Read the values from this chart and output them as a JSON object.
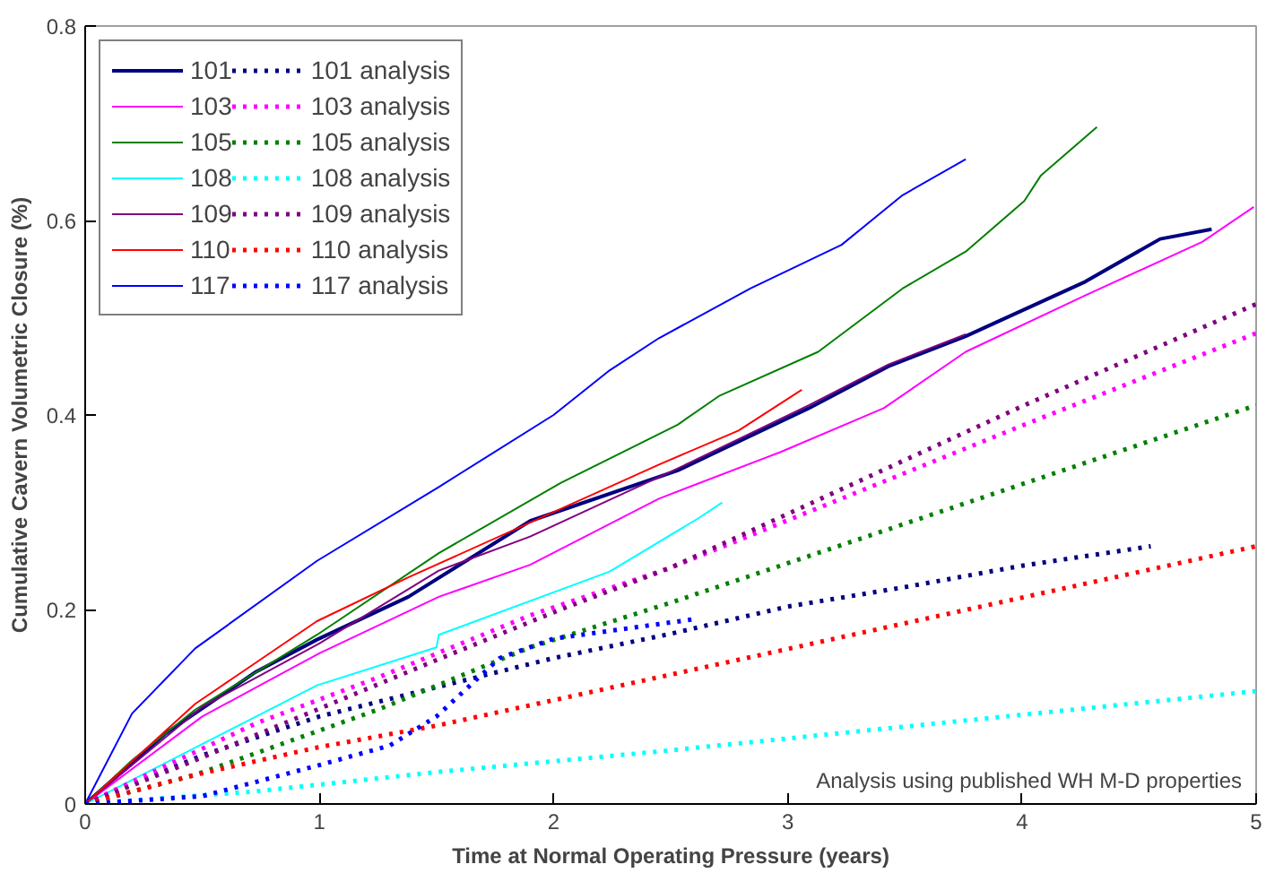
{
  "chart_data": {
    "type": "line",
    "xlabel": "Time at Normal Operating Pressure (years)",
    "ylabel": "Cumulative Cavern Volumetric Closure (%)",
    "xlim": [
      0,
      5
    ],
    "ylim": [
      0,
      0.8
    ],
    "xticks": [
      0,
      1,
      2,
      3,
      4,
      5
    ],
    "yticks": [
      0,
      0.2,
      0.4,
      0.6,
      0.8
    ],
    "grid": false,
    "legend": "top left",
    "marker": "none",
    "annotations": [
      "Analysis using published WH M-D properties"
    ],
    "series": [
      {
        "name": "101",
        "color": "#000080",
        "line_style": "solid",
        "x": [
          0,
          0.34,
          0.73,
          0.99,
          1.38,
          1.9,
          2.53,
          3.09,
          3.43,
          3.76,
          4.27,
          4.59,
          4.81
        ],
        "values": [
          0,
          0.072,
          0.136,
          0.169,
          0.213,
          0.291,
          0.343,
          0.407,
          0.45,
          0.481,
          0.537,
          0.581,
          0.591
        ]
      },
      {
        "name": "103",
        "color": "#ff00ff",
        "line_style": "solid",
        "x": [
          0,
          0.5,
          1,
          1.51,
          1.9,
          2.45,
          2.97,
          3.41,
          3.76,
          4.27,
          4.77,
          4.99
        ],
        "values": [
          0,
          0.09,
          0.155,
          0.213,
          0.246,
          0.314,
          0.362,
          0.407,
          0.465,
          0.523,
          0.578,
          0.614
        ]
      },
      {
        "name": "105",
        "color": "#008000",
        "line_style": "solid",
        "x": [
          0,
          0.2,
          0.47,
          0.99,
          1.51,
          2.03,
          2.53,
          2.71,
          3.13,
          3.49,
          3.76,
          4.01,
          4.08,
          4.32
        ],
        "values": [
          0,
          0.045,
          0.097,
          0.174,
          0.258,
          0.33,
          0.39,
          0.42,
          0.465,
          0.53,
          0.568,
          0.62,
          0.646,
          0.696
        ]
      },
      {
        "name": "108",
        "color": "#00ffff",
        "line_style": "solid",
        "x": [
          0,
          0.47,
          0.99,
          1.5,
          1.51,
          2.24,
          2.62,
          2.72
        ],
        "values": [
          0,
          0.058,
          0.122,
          0.161,
          0.174,
          0.239,
          0.294,
          0.31
        ]
      },
      {
        "name": "109",
        "color": "#800080",
        "line_style": "solid",
        "x": [
          0,
          0.5,
          1,
          1.51,
          1.9,
          2.53,
          3.09,
          3.43,
          3.76
        ],
        "values": [
          0,
          0.1,
          0.165,
          0.24,
          0.275,
          0.345,
          0.41,
          0.452,
          0.483
        ]
      },
      {
        "name": "110",
        "color": "#ff0000",
        "line_style": "solid",
        "x": [
          0,
          0.47,
          0.99,
          1.38,
          2.21,
          2.45,
          2.79,
          3.06
        ],
        "values": [
          0,
          0.103,
          0.188,
          0.233,
          0.323,
          0.349,
          0.384,
          0.426
        ]
      },
      {
        "name": "117",
        "color": "#0000ff",
        "line_style": "solid",
        "x": [
          0,
          0.2,
          0.47,
          0.99,
          1.51,
          2.0,
          2.24,
          2.45,
          2.84,
          3.23,
          3.49,
          3.76
        ],
        "values": [
          0,
          0.093,
          0.16,
          0.25,
          0.326,
          0.4,
          0.446,
          0.479,
          0.53,
          0.575,
          0.626,
          0.663
        ]
      },
      {
        "name": "101 analysis",
        "color": "#000080",
        "line_style": "dotted",
        "x": [
          0,
          0.5,
          1,
          1.5,
          2,
          2.5,
          3,
          3.5,
          4,
          4.55
        ],
        "values": [
          0,
          0.05,
          0.09,
          0.12,
          0.15,
          0.175,
          0.203,
          0.223,
          0.245,
          0.265
        ]
      },
      {
        "name": "103 analysis",
        "color": "#ff00ff",
        "line_style": "dotted",
        "x": [
          0,
          0.73,
          1.25,
          1.9,
          2.5,
          4.01,
          5
        ],
        "values": [
          0,
          0.083,
          0.13,
          0.194,
          0.243,
          0.39,
          0.484
        ]
      },
      {
        "name": "105 analysis",
        "color": "#008000",
        "line_style": "dotted",
        "x": [
          0,
          0.47,
          1.25,
          1.9,
          2.5,
          5
        ],
        "values": [
          0,
          0.03,
          0.097,
          0.161,
          0.207,
          0.41
        ]
      },
      {
        "name": "108 analysis",
        "color": "#00ffff",
        "line_style": "dotted",
        "x": [
          0,
          0.73,
          1.51,
          2.45,
          5
        ],
        "values": [
          0,
          0.013,
          0.033,
          0.054,
          0.116
        ]
      },
      {
        "name": "109 analysis",
        "color": "#800080",
        "line_style": "dotted",
        "x": [
          0,
          0.47,
          0.99,
          1.51,
          2.03,
          2.5,
          4.01,
          5
        ],
        "values": [
          0,
          0.045,
          0.097,
          0.149,
          0.2,
          0.243,
          0.41,
          0.514
        ]
      },
      {
        "name": "110 analysis",
        "color": "#ff0000",
        "line_style": "dotted",
        "x": [
          0,
          0.47,
          0.99,
          1.51,
          2.5,
          5
        ],
        "values": [
          0,
          0.03,
          0.058,
          0.081,
          0.133,
          0.265
        ]
      },
      {
        "name": "117 analysis",
        "color": "#0000ff",
        "line_style": "dotted",
        "x": [
          0,
          0.5,
          1,
          1.3,
          1.5,
          1.77,
          2.0,
          2.6
        ],
        "values": [
          0,
          0.008,
          0.04,
          0.06,
          0.09,
          0.15,
          0.17,
          0.19
        ]
      }
    ]
  }
}
